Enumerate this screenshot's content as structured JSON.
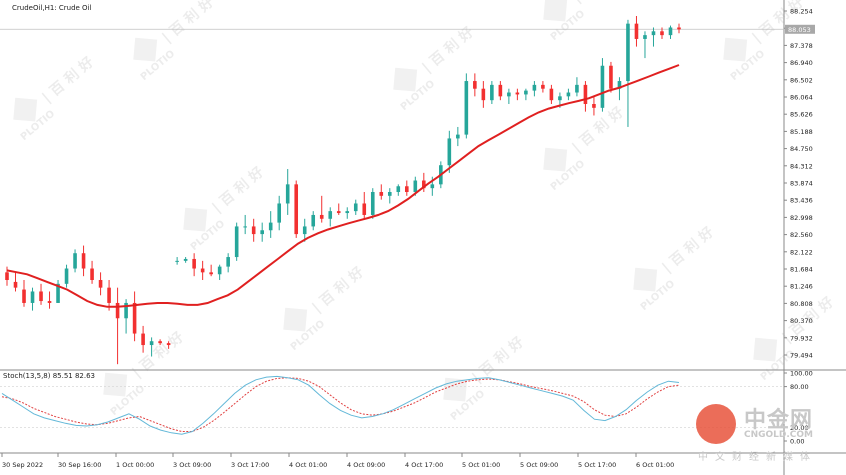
{
  "header": {
    "symbol_title": "CrudeOil,H1:  Crude Oil",
    "stoch_title": "Stoch(13,5,8) 85.51 82.63"
  },
  "watermark": {
    "brand": "PLOTIO",
    "cn_text": "| 百 利 好",
    "logo_name": "中金网",
    "logo_url": "CNGOLD.COM",
    "logo_sub": "中文财经新媒体"
  },
  "colors": {
    "bull": "#26a69a",
    "bear": "#f23030",
    "ma": "#e02020",
    "stoch_main": "#63b8d8",
    "stoch_signal": "#e04040",
    "grid": "#d8d8d8"
  },
  "chart_data": [
    {
      "type": "candlestick",
      "title": "CrudeOil,H1:  Crude Oil",
      "timeframe": "H1",
      "ylim": [
        79.2,
        88.4
      ],
      "y_ticks": [
        "88.254",
        "87.816",
        "87.378",
        "86.940",
        "86.502",
        "86.064",
        "85.626",
        "85.188",
        "84.750",
        "84.312",
        "83.874",
        "83.436",
        "82.998",
        "82.560",
        "82.122",
        "81.684",
        "81.246",
        "80.808",
        "80.370",
        "79.932",
        "79.494"
      ],
      "current_price": "88.053",
      "x_ticks": [
        "30 Sep 2022",
        "30 Sep 16:00",
        "1 Oct 00:00",
        "3 Oct 09:00",
        "3 Oct 17:00",
        "4 Oct 01:00",
        "4 Oct 09:00",
        "4 Oct 17:00",
        "5 Oct 01:00",
        "5 Oct 09:00",
        "5 Oct 17:00",
        "6 Oct 01:00"
      ],
      "candles": [
        [
          81.7,
          81.85,
          81.35,
          81.5
        ],
        [
          81.45,
          81.7,
          81.2,
          81.3
        ],
        [
          81.25,
          81.5,
          80.8,
          80.9
        ],
        [
          80.9,
          81.3,
          80.7,
          81.2
        ],
        [
          81.2,
          81.4,
          80.85,
          80.95
        ],
        [
          80.95,
          81.2,
          80.75,
          80.9
        ],
        [
          80.9,
          81.5,
          80.9,
          81.4
        ],
        [
          81.4,
          81.9,
          81.3,
          81.8
        ],
        [
          81.8,
          82.3,
          81.7,
          82.2
        ],
        [
          82.2,
          82.4,
          81.6,
          81.8
        ],
        [
          81.8,
          82.0,
          81.4,
          81.5
        ],
        [
          81.5,
          81.7,
          81.1,
          81.3
        ],
        [
          81.3,
          81.5,
          80.7,
          80.9
        ],
        [
          80.9,
          81.3,
          79.3,
          80.5
        ],
        [
          80.5,
          81.0,
          80.1,
          80.9
        ],
        [
          80.9,
          81.2,
          79.9,
          80.1
        ],
        [
          80.1,
          80.3,
          79.6,
          79.8
        ],
        [
          79.8,
          80.0,
          79.5,
          79.9
        ],
        [
          79.9,
          79.95,
          79.8,
          79.85
        ],
        [
          79.85,
          79.9,
          79.7,
          79.8
        ],
        [
          82.0,
          82.1,
          81.9,
          82.0
        ],
        [
          82.0,
          82.1,
          81.95,
          82.05
        ],
        [
          82.05,
          82.2,
          81.6,
          81.8
        ],
        [
          81.8,
          82.0,
          81.5,
          81.7
        ],
        [
          81.7,
          81.9,
          81.6,
          81.65
        ],
        [
          81.65,
          81.9,
          81.5,
          81.85
        ],
        [
          81.85,
          82.2,
          81.7,
          82.1
        ],
        [
          82.1,
          83.0,
          82.0,
          82.9
        ],
        [
          82.9,
          83.2,
          82.7,
          82.9
        ],
        [
          82.9,
          83.1,
          82.5,
          82.7
        ],
        [
          82.7,
          83.0,
          82.5,
          82.8
        ],
        [
          82.8,
          83.3,
          82.6,
          83.0
        ],
        [
          83.0,
          83.7,
          82.8,
          83.5
        ],
        [
          83.5,
          84.4,
          83.2,
          84.0
        ],
        [
          84.0,
          84.1,
          82.6,
          82.7
        ],
        [
          82.7,
          83.1,
          82.5,
          82.9
        ],
        [
          82.9,
          83.3,
          82.8,
          83.2
        ],
        [
          83.2,
          83.7,
          83.0,
          83.1
        ],
        [
          83.1,
          83.4,
          82.9,
          83.3
        ],
        [
          83.3,
          83.5,
          83.2,
          83.25
        ],
        [
          83.25,
          83.4,
          83.1,
          83.3
        ],
        [
          83.3,
          83.6,
          83.2,
          83.5
        ],
        [
          83.5,
          83.8,
          83.1,
          83.2
        ],
        [
          83.2,
          83.9,
          83.1,
          83.8
        ],
        [
          83.8,
          84.0,
          83.6,
          83.7
        ],
        [
          83.7,
          83.9,
          83.5,
          83.8
        ],
        [
          83.8,
          84.0,
          83.7,
          83.95
        ],
        [
          83.95,
          84.1,
          83.7,
          83.8
        ],
        [
          83.8,
          84.2,
          83.7,
          84.1
        ],
        [
          84.1,
          84.3,
          83.8,
          83.9
        ],
        [
          83.9,
          84.2,
          83.7,
          84.0
        ],
        [
          84.0,
          84.6,
          83.9,
          84.5
        ],
        [
          84.5,
          85.4,
          84.3,
          85.2
        ],
        [
          85.2,
          85.5,
          85.0,
          85.3
        ],
        [
          85.3,
          86.9,
          85.2,
          86.7
        ],
        [
          86.7,
          86.9,
          86.3,
          86.5
        ],
        [
          86.5,
          86.7,
          86.0,
          86.2
        ],
        [
          86.2,
          86.7,
          86.1,
          86.6
        ],
        [
          86.6,
          86.7,
          86.2,
          86.3
        ],
        [
          86.3,
          86.5,
          86.1,
          86.4
        ],
        [
          86.4,
          86.5,
          86.2,
          86.35
        ],
        [
          86.35,
          86.5,
          86.2,
          86.45
        ],
        [
          86.45,
          86.7,
          86.3,
          86.6
        ],
        [
          86.6,
          86.7,
          86.4,
          86.5
        ],
        [
          86.5,
          86.6,
          86.1,
          86.2
        ],
        [
          86.2,
          86.4,
          86.0,
          86.3
        ],
        [
          86.3,
          86.5,
          86.2,
          86.4
        ],
        [
          86.4,
          86.8,
          86.3,
          86.6
        ],
        [
          86.6,
          86.7,
          85.9,
          86.1
        ],
        [
          86.1,
          86.3,
          85.8,
          86.0
        ],
        [
          86.0,
          87.3,
          85.9,
          87.1
        ],
        [
          87.1,
          87.2,
          86.4,
          86.5
        ],
        [
          86.5,
          86.8,
          86.2,
          86.7
        ],
        [
          86.7,
          88.3,
          85.5,
          88.2
        ],
        [
          88.2,
          88.4,
          87.6,
          87.8
        ],
        [
          87.8,
          88.0,
          87.3,
          87.9
        ],
        [
          87.9,
          88.1,
          87.6,
          88.0
        ],
        [
          88.0,
          88.1,
          87.8,
          87.9
        ],
        [
          87.9,
          88.15,
          87.8,
          88.1
        ],
        [
          88.1,
          88.2,
          87.95,
          88.05
        ]
      ],
      "ma": [
        81.75,
        81.7,
        81.65,
        81.55,
        81.45,
        81.35,
        81.25,
        81.1,
        80.95,
        80.85,
        80.8,
        80.8,
        80.82,
        80.85,
        80.88,
        80.9,
        80.9,
        80.88,
        80.85,
        80.85,
        80.9,
        81.0,
        81.1,
        81.25,
        81.45,
        81.65,
        81.85,
        82.05,
        82.25,
        82.45,
        82.6,
        82.72,
        82.82,
        82.9,
        82.98,
        83.05,
        83.12,
        83.2,
        83.3,
        83.45,
        83.62,
        83.82,
        84.02,
        84.2,
        84.4,
        84.6,
        84.8,
        85.0,
        85.15,
        85.3,
        85.45,
        85.6,
        85.75,
        85.88,
        85.98,
        86.05,
        86.12,
        86.18,
        86.25,
        86.35,
        86.45,
        86.52,
        86.62,
        86.72,
        86.82,
        86.92,
        87.02,
        87.12
      ],
      "stochastic": {
        "ylim": [
          0,
          100
        ],
        "y_ticks": [
          "100.00",
          "80.00",
          "20.00",
          "0.00"
        ],
        "main": [
          70,
          60,
          50,
          40,
          34,
          30,
          26,
          23,
          22,
          24,
          28,
          34,
          40,
          32,
          22,
          16,
          12,
          10,
          14,
          26,
          40,
          55,
          70,
          82,
          90,
          94,
          95,
          93,
          90,
          82,
          68,
          55,
          45,
          38,
          34,
          36,
          40,
          46,
          54,
          62,
          70,
          78,
          84,
          88,
          90,
          92,
          93,
          90,
          86,
          82,
          78,
          74,
          70,
          66,
          60,
          45,
          32,
          30,
          36,
          46,
          60,
          72,
          82,
          88,
          86
        ],
        "signal": [
          65,
          62,
          56,
          48,
          42,
          36,
          32,
          28,
          25,
          24,
          26,
          30,
          34,
          36,
          30,
          24,
          18,
          14,
          14,
          20,
          30,
          42,
          55,
          68,
          80,
          88,
          92,
          93,
          92,
          88,
          80,
          68,
          56,
          46,
          40,
          38,
          40,
          44,
          50,
          56,
          64,
          72,
          78,
          84,
          88,
          90,
          91,
          90,
          87,
          84,
          80,
          77,
          74,
          70,
          66,
          58,
          46,
          38,
          36,
          40,
          50,
          62,
          72,
          80,
          82
        ]
      }
    }
  ]
}
